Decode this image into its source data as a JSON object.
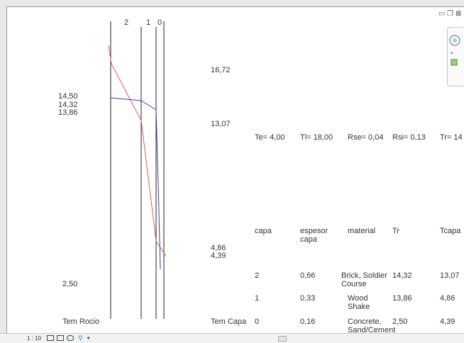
{
  "window_controls": {
    "minimize": "▭",
    "restore": "❐",
    "close": "⊠"
  },
  "diagram": {
    "layer_numbers": [
      "2",
      "1",
      "0"
    ],
    "left_temps": [
      "14,50",
      "14,32",
      "13,86",
      "2,50"
    ],
    "right_temps": [
      "16,72",
      "13,07",
      "4,86",
      "4,39"
    ],
    "tem_rocio": "Tem Rocio",
    "tem_capa": "Tem Capa"
  },
  "params": {
    "te": "Te= 4,00",
    "ti": "Tl= 18,00",
    "rse": "Rse= 0,04",
    "rsi": "Rsi= 0,13",
    "tr": "Tr= 14"
  },
  "table": {
    "headers": [
      "capa",
      "espesor\ncapa",
      "material",
      "Tr",
      "Tcapa"
    ],
    "rows": [
      {
        "capa": "2",
        "espesor": "0,66",
        "material": "Brick, Soldier Course",
        "tr": "14,32",
        "tcapa": "13,07"
      },
      {
        "capa": "1",
        "espesor": "0,33",
        "material": "Wood Shake",
        "tr": "13,86",
        "tcapa": "4,86"
      },
      {
        "capa": "0",
        "espesor": "0,16",
        "material": "Concrete, Sand/Cement",
        "tr": "2,50",
        "tcapa": "4,39"
      }
    ]
  },
  "statusbar": {
    "scale": "1 : 10"
  },
  "colors": {
    "temp_line": "#e05a4e",
    "dew_line": "#3a3aa8",
    "layer_line": "#222222"
  }
}
